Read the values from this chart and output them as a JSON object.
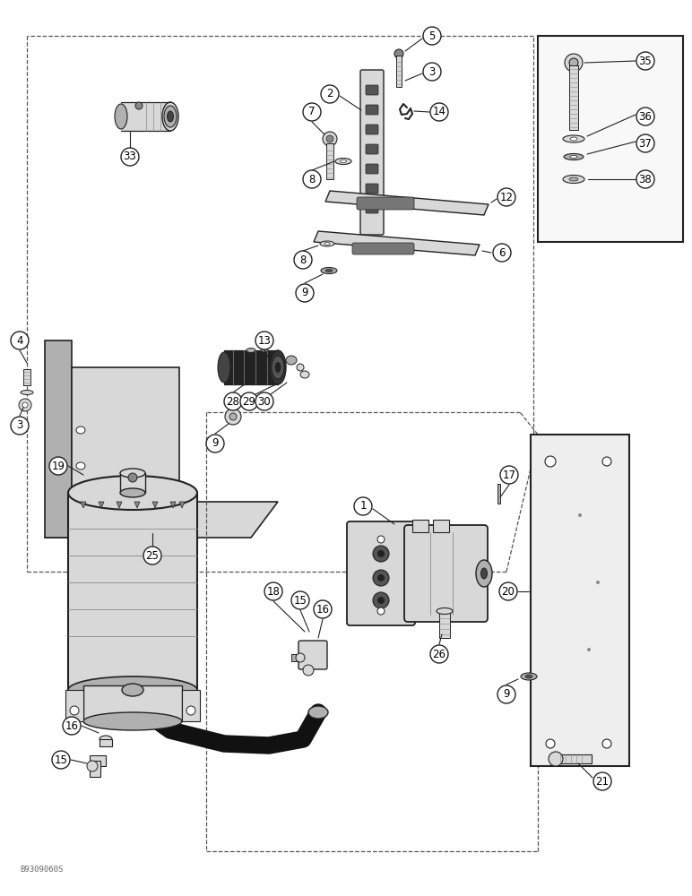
{
  "figure_size": [
    7.72,
    10.0
  ],
  "dpi": 100,
  "bg_color": "#ffffff",
  "watermark": "B9309060S",
  "line_color": "#222222",
  "gray_light": "#d8d8d8",
  "gray_mid": "#b0b0b0",
  "gray_dark": "#888888"
}
